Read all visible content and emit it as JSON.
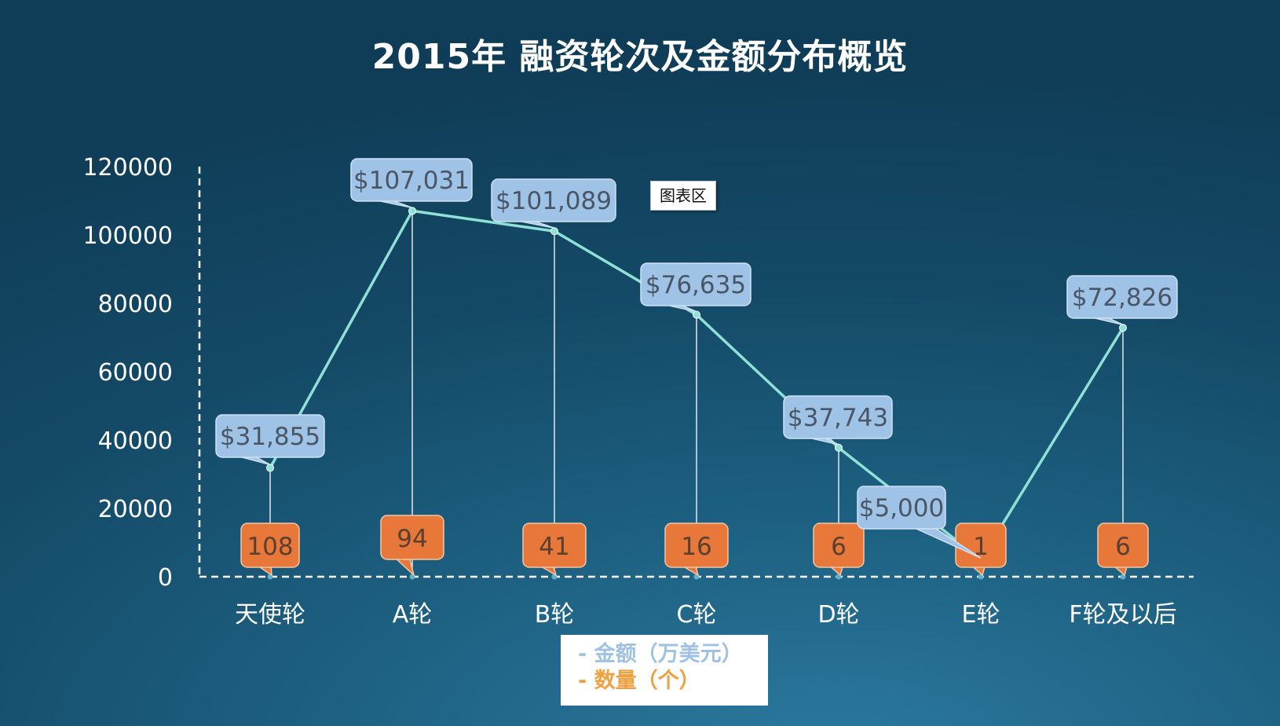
{
  "chart_data": {
    "type": "line",
    "title": "2015年 融资轮次及金额分布概览",
    "categories": [
      "天使轮",
      "A轮",
      "B轮",
      "C轮",
      "D轮",
      "E轮",
      "F轮及以后"
    ],
    "series": [
      {
        "name": "金额（万美元）",
        "values": [
          31855,
          107031,
          101089,
          76635,
          37743,
          5000,
          72826
        ],
        "labels": [
          "$31,855",
          "$107,031",
          "$101,089",
          "$76,635",
          "$37,743",
          "$5,000",
          "$72,826"
        ],
        "color": "#8fe0d6",
        "label_bg": "#9fc3e6"
      },
      {
        "name": "数量（个）",
        "values": [
          108,
          94,
          41,
          16,
          6,
          1,
          6
        ],
        "labels": [
          "108",
          "94",
          "41",
          "16",
          "6",
          "1",
          "6"
        ],
        "color": "#e8773a"
      }
    ],
    "ylim": [
      0,
      120000
    ],
    "yticks": [
      0,
      20000,
      40000,
      60000,
      80000,
      100000,
      120000
    ],
    "ytick_labels": [
      "0",
      "20000",
      "40000",
      "60000",
      "80000",
      "100000",
      "120000"
    ],
    "legend_position": "bottom",
    "grid": false
  },
  "chart_area_tag": "图表区",
  "legend": {
    "amount": "- 金额（万美元）",
    "count": "- 数量（个）"
  }
}
